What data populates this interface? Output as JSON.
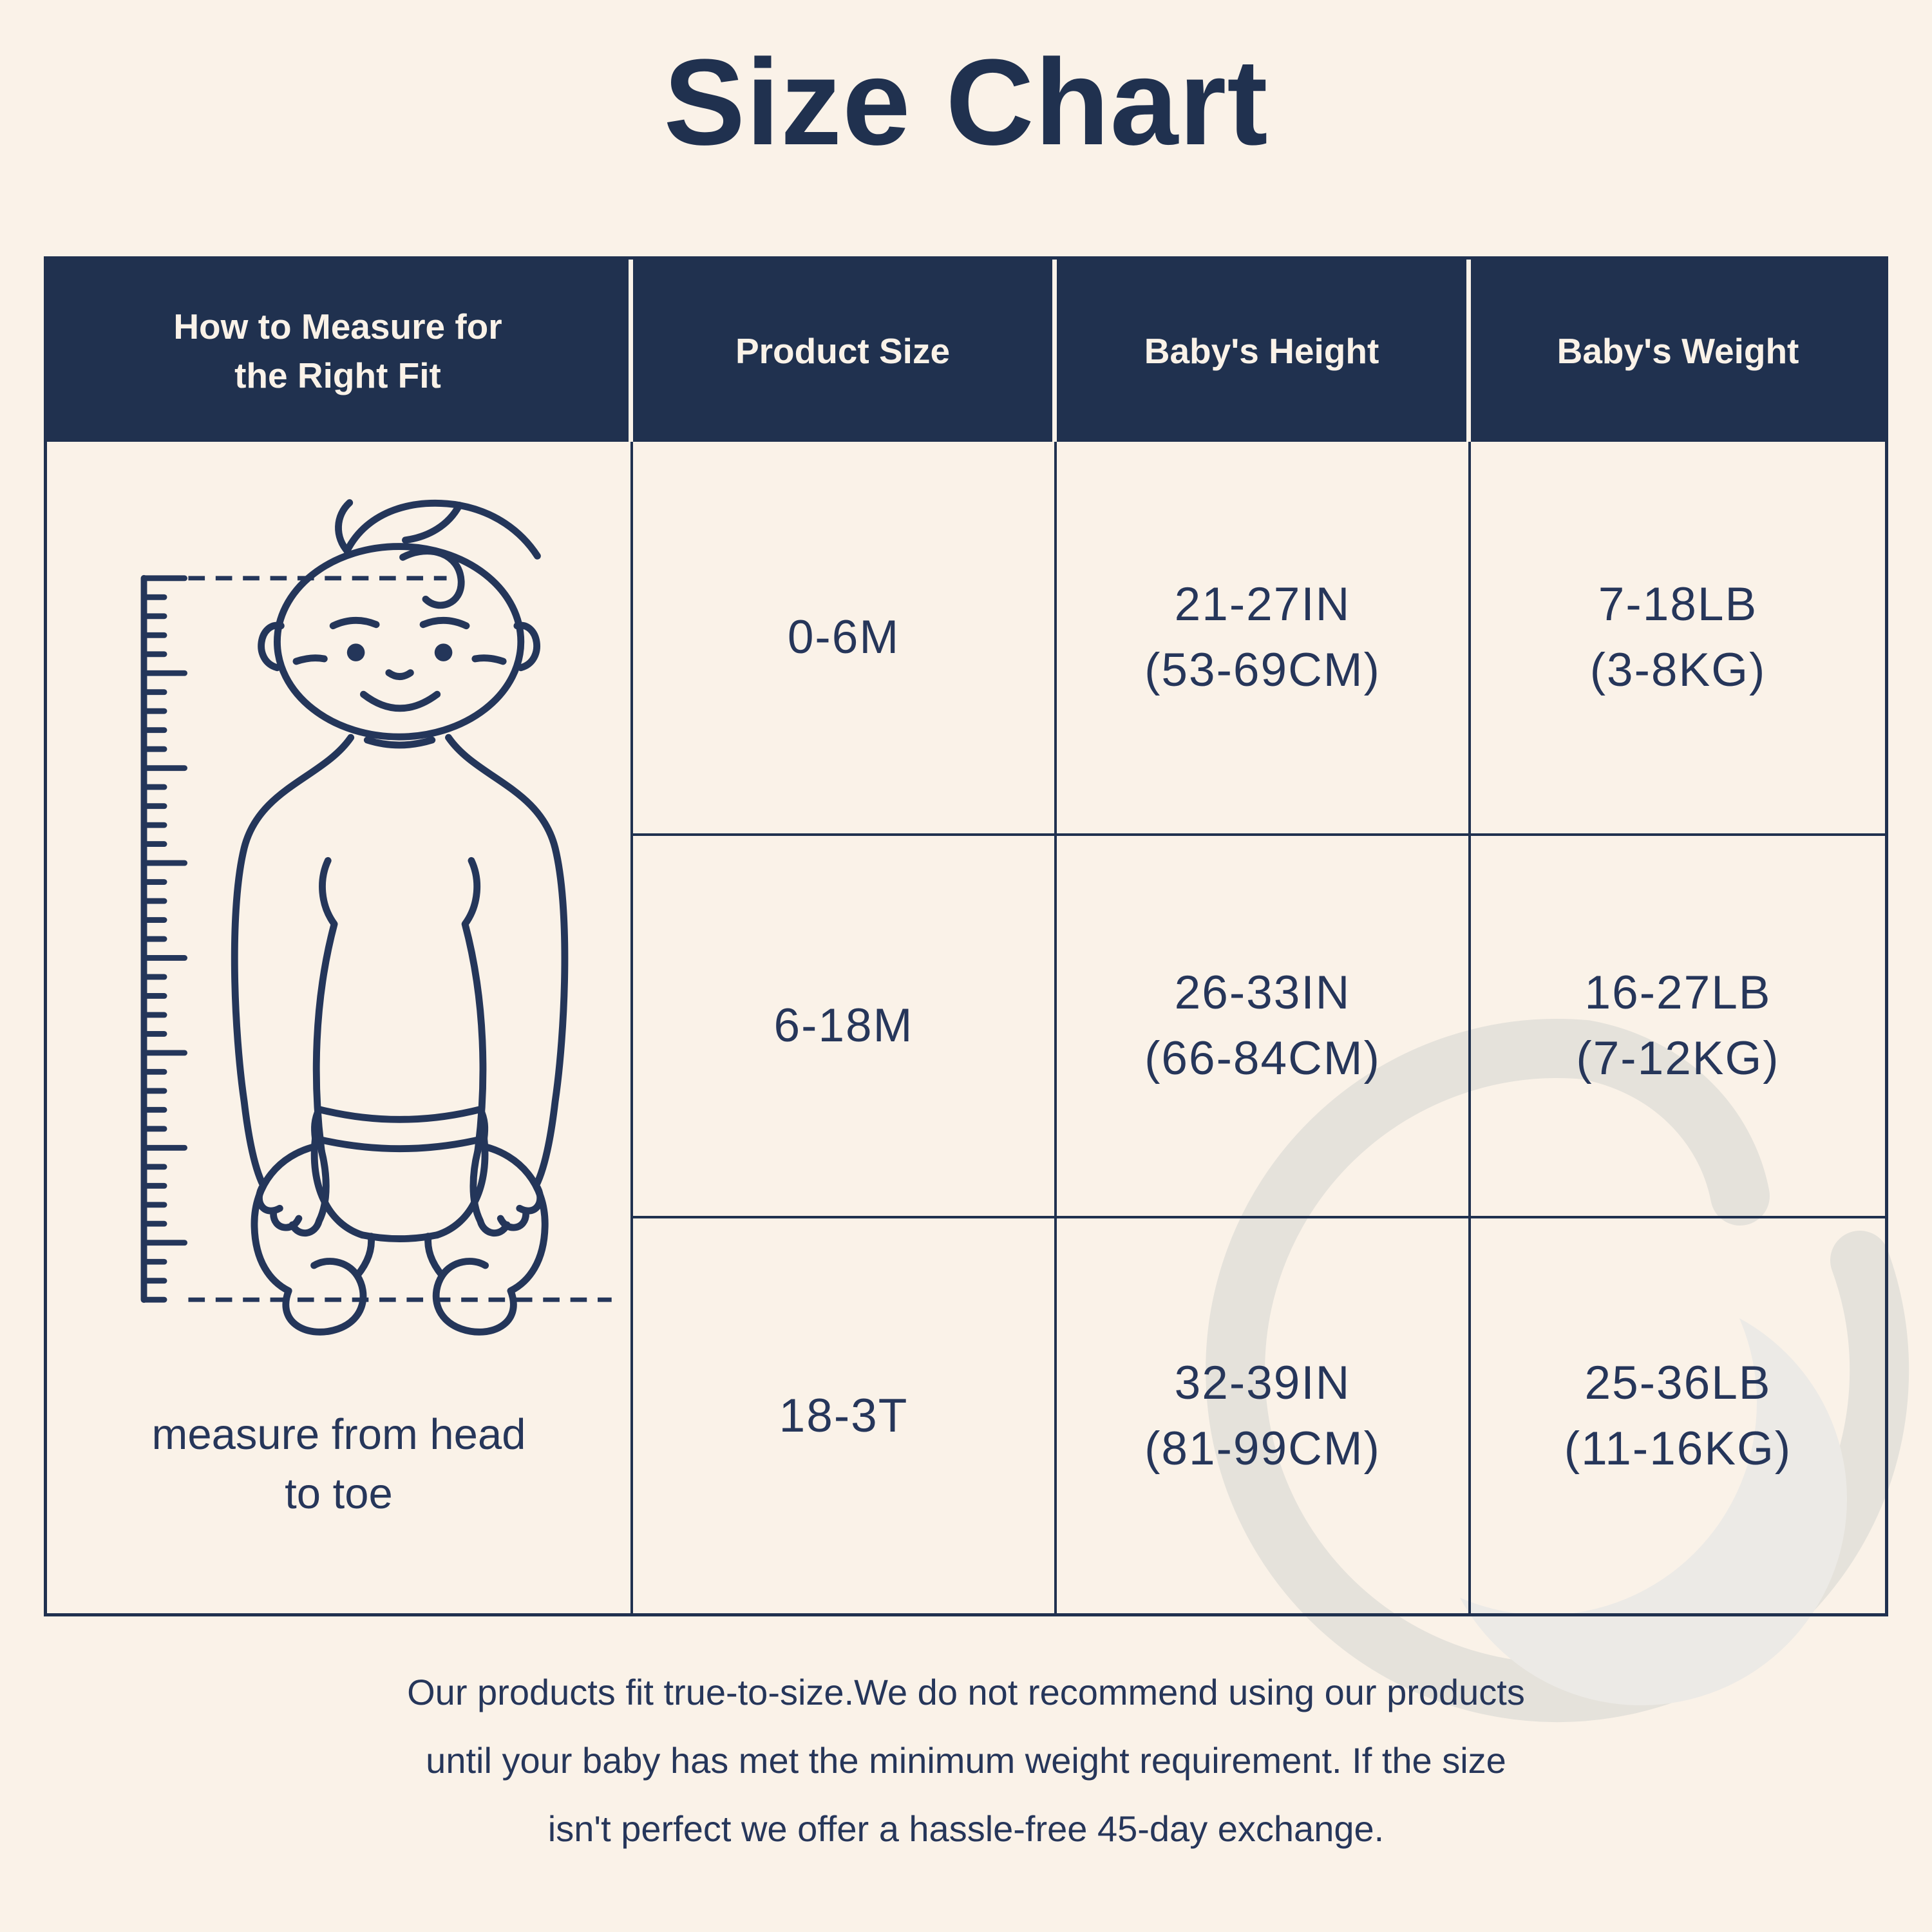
{
  "page": {
    "title": "Size Chart"
  },
  "theme": {
    "bg": "#FAF2E8",
    "navy": "#20314F",
    "header_text": "#FAF2E8",
    "cell_text": "#26365A",
    "ink": "#24365A",
    "wm_ring": "#E5E2DB",
    "wm_crescent": "#ECEAE6"
  },
  "table": {
    "columns": [
      {
        "label_lines": [
          "How to Measure for",
          "the Right Fit"
        ]
      },
      {
        "label_lines": [
          "Product Size"
        ]
      },
      {
        "label_lines": [
          "Baby's Height"
        ]
      },
      {
        "label_lines": [
          "Baby's Weight"
        ]
      }
    ],
    "measure_caption": "measure from head to toe",
    "rows": [
      {
        "product_size": "0-6M",
        "height_line1": "21-27IN",
        "height_line2": "(53-69CM)",
        "weight_line1": "7-18LB",
        "weight_line2": "(3-8KG)"
      },
      {
        "product_size": "6-18M",
        "height_line1": "26-33IN",
        "height_line2": "(66-84CM)",
        "weight_line1": "16-27LB",
        "weight_line2": "(7-12KG)"
      },
      {
        "product_size": "18-3T",
        "height_line1": "32-39IN",
        "height_line2": "(81-99CM)",
        "weight_line1": "25-36LB",
        "weight_line2": "(11-16KG)"
      }
    ]
  },
  "footer": {
    "lines": [
      "Our products fit true-to-size.We do not recommend using our products",
      "until your baby has met the minimum weight requirement. If the size",
      "isn't perfect we offer a hassle-free 45-day exchange."
    ]
  },
  "icons": {
    "baby_illustration": "baby-with-height-ruler-icon",
    "watermark": "crescent-moon-brand-logo-icon"
  }
}
